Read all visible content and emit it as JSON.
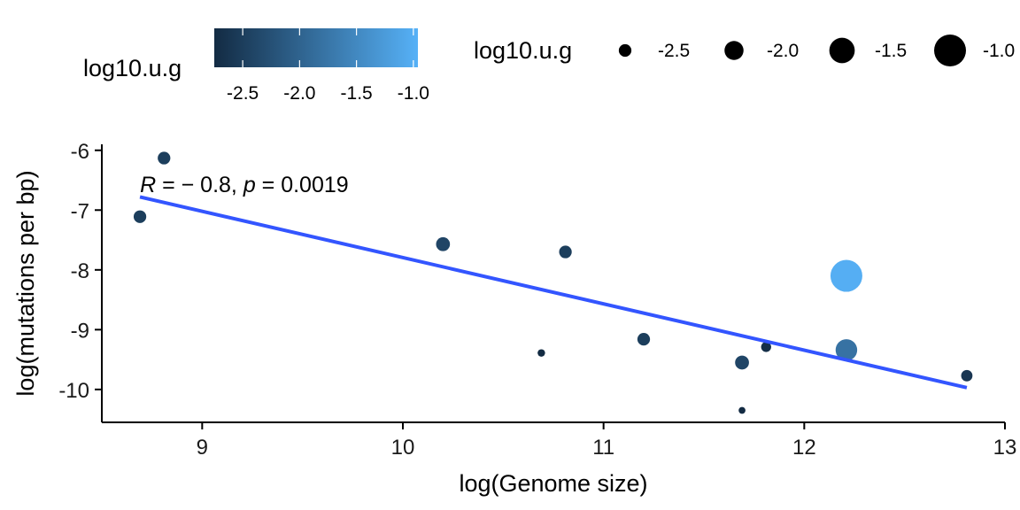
{
  "chart_data": {
    "type": "scatter",
    "xlabel": "log(Genome size)",
    "ylabel": "log(mutations per bp)",
    "xlim": [
      8.5,
      13.0
    ],
    "ylim": [
      -10.55,
      -5.9
    ],
    "xticks": [
      9,
      10,
      11,
      12,
      13
    ],
    "yticks": [
      -6,
      -7,
      -8,
      -9,
      -10
    ],
    "grid": false,
    "points": [
      {
        "x": 8.81,
        "y": -6.13,
        "log10_u_g": -2.5
      },
      {
        "x": 8.69,
        "y": -7.11,
        "log10_u_g": -2.5
      },
      {
        "x": 10.2,
        "y": -7.57,
        "log10_u_g": -2.4
      },
      {
        "x": 10.81,
        "y": -7.7,
        "log10_u_g": -2.5
      },
      {
        "x": 12.21,
        "y": -8.1,
        "log10_u_g": -1.0
      },
      {
        "x": 11.2,
        "y": -9.16,
        "log10_u_g": -2.5
      },
      {
        "x": 10.69,
        "y": -9.39,
        "log10_u_g": -2.9
      },
      {
        "x": 11.81,
        "y": -9.29,
        "log10_u_g": -2.7
      },
      {
        "x": 11.69,
        "y": -9.55,
        "log10_u_g": -2.4
      },
      {
        "x": 12.21,
        "y": -9.34,
        "log10_u_g": -1.8
      },
      {
        "x": 12.81,
        "y": -9.77,
        "log10_u_g": -2.6
      },
      {
        "x": 11.69,
        "y": -10.35,
        "log10_u_g": -2.95
      }
    ],
    "fit_line": {
      "x": [
        8.69,
        12.81
      ],
      "y": [
        -6.78,
        -9.97
      ],
      "color": "#3355FF"
    },
    "annotation": {
      "R_label": "R",
      "R_value": " = − 0.8, ",
      "p_label": "p",
      "p_value": " = 0.0019",
      "x": 8.69,
      "y": -6.55
    },
    "legend": {
      "placement": "top",
      "color_title": "log10.u.g",
      "color_ticks": [
        "-2.5",
        "-2.0",
        "-1.5",
        "-1.0"
      ],
      "color_tick_values": [
        -2.5,
        -2.0,
        -1.5,
        -1.0
      ],
      "color_range": [
        -2.75,
        -0.96
      ],
      "color_low": "#132B43",
      "color_high": "#56B1F7",
      "size_title": "log10.u.g",
      "size_labels": [
        "-2.5",
        "-2.0",
        "-1.5",
        "-1.0"
      ],
      "size_values": [
        -2.5,
        -2.0,
        -1.5,
        -1.0
      ]
    }
  }
}
